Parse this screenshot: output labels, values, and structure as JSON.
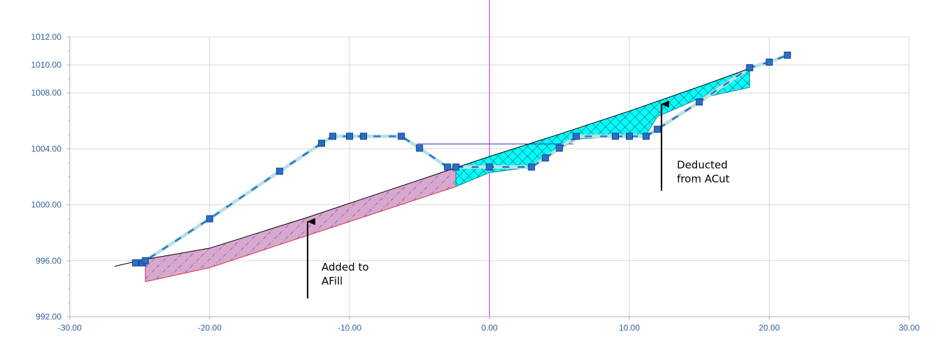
{
  "chart_data": {
    "type": "line",
    "title": "",
    "xlabel": "",
    "ylabel": "",
    "xlim": [
      -30,
      30
    ],
    "ylim": [
      992,
      1012
    ],
    "xticks": [
      -30,
      -20,
      -10,
      0,
      10,
      20,
      30
    ],
    "yticks": [
      992,
      996,
      1000,
      1004,
      1008,
      1010,
      1012
    ],
    "xtick_labels": [
      "-30.00",
      "-20.00",
      "-10.00",
      "0.00",
      "10.00",
      "20.00",
      "30.00"
    ],
    "ytick_labels": [
      "992.00",
      "996.00",
      "1000.00",
      "1004.00",
      "1008.00",
      "1010.00",
      "1012.00"
    ],
    "grid": true,
    "centerline_x": 0,
    "series": [
      {
        "role": "design-surface",
        "color": "#2a6fc9",
        "marker": "square",
        "x": [
          -25.3,
          -24.8,
          -24.6,
          -20,
          -15,
          -12,
          -11.2,
          -10,
          -9,
          -6.3,
          -5,
          -3,
          -2.4,
          0,
          3,
          4,
          5,
          6.2,
          9,
          10,
          11.2,
          12,
          15,
          18.6,
          20,
          21.3
        ],
        "y": [
          995.85,
          995.85,
          996.0,
          999.0,
          1002.4,
          1004.4,
          1004.9,
          1004.9,
          1004.9,
          1004.9,
          1004.05,
          1002.7,
          1002.7,
          1002.7,
          1002.7,
          1003.35,
          1004.05,
          1004.9,
          1004.9,
          1004.9,
          1004.9,
          1005.4,
          1007.35,
          1009.8,
          1010.2,
          1010.7
        ]
      },
      {
        "role": "ground-line",
        "color": "#000000",
        "x": [
          -26.8,
          -24.6,
          -20,
          -13,
          -2.4,
          0,
          5,
          10,
          15,
          18.6
        ],
        "y": [
          995.6,
          996.1,
          996.9,
          999.1,
          1002.65,
          1003.45,
          1005.05,
          1006.7,
          1008.45,
          1009.75
        ]
      }
    ],
    "regions": [
      {
        "role": "fill-area",
        "fill": "#dca7cd",
        "stroke": "#e0304a",
        "hatch": "#4a7fd4",
        "top_x": [
          -24.6,
          -20,
          -13,
          -2.4
        ],
        "top_y": [
          996.1,
          996.9,
          999.1,
          1002.65
        ],
        "bottom_x": [
          -24.6,
          -20,
          -2.4
        ],
        "bottom_y": [
          994.5,
          995.5,
          1001.3
        ]
      },
      {
        "role": "cut-area",
        "fill": "#00ffff",
        "stroke": "#1a8a8a",
        "hatch": "#1a8a8a",
        "top_x": [
          -2.4,
          0,
          5,
          10,
          15,
          18.6
        ],
        "top_y": [
          1002.65,
          1003.45,
          1005.05,
          1006.7,
          1008.45,
          1009.75
        ],
        "bottom_x": [
          -2.4,
          0,
          3,
          6.2,
          11.2,
          12,
          15,
          18.6
        ],
        "bottom_y": [
          1001.3,
          1002.3,
          1002.7,
          1004.7,
          1005.0,
          1006.3,
          1007.6,
          1008.4
        ]
      }
    ],
    "reference_line": {
      "color": "#3333cc",
      "y": 1004.35,
      "x_from": -5.2,
      "x_to": 6
    },
    "annotations": [
      {
        "lines": [
          "Added to",
          "AFill"
        ],
        "text_at": [
          -12,
          995.3
        ],
        "arrow_from": [
          -13,
          993.3
        ],
        "arrow_to": [
          -13,
          998.8
        ]
      },
      {
        "lines": [
          "Deducted",
          "from ACut"
        ],
        "text_at": [
          13.4,
          1002.6
        ],
        "arrow_from": [
          12.3,
          1001.0
        ],
        "arrow_to": [
          12.3,
          1007.2
        ]
      }
    ],
    "colors": {
      "grid": "#d9d9d9",
      "axis": "#b0b0b0",
      "tick_text": "#2f5f9a",
      "centerline": "#e040e0",
      "marker": "#2a6fc9",
      "marker_stroke": "#0d3d80",
      "halo": "#b9e2e2",
      "annotation": "#000000"
    }
  }
}
